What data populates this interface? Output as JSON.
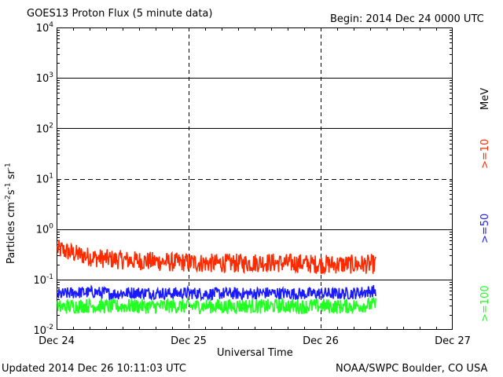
{
  "header": {
    "title": "GOES13 Proton Flux (5 minute data)",
    "begin": "Begin: 2014 Dec 24 0000 UTC"
  },
  "footer": {
    "updated": "Updated 2014 Dec 26 10:11:03 UTC",
    "credit": "NOAA/SWPC Boulder, CO USA"
  },
  "legend": {
    "unit": "MeV",
    "items": [
      {
        "label": ">=10",
        "color": "#ff2a00"
      },
      {
        "label": ">=50",
        "color": "#1a1aff"
      },
      {
        "label": ">=100",
        "color": "#22ff22"
      }
    ]
  },
  "chart_data": {
    "type": "line",
    "title": "GOES13 Proton Flux (5 minute data)",
    "xlabel": "Universal Time",
    "ylabel": "Particles cm^-2 s^-1 sr^-1",
    "y_scale": "log",
    "ylim": [
      0.01,
      10000
    ],
    "y_ticks": [
      {
        "base": "10",
        "exp": "4"
      },
      {
        "base": "10",
        "exp": "3"
      },
      {
        "base": "10",
        "exp": "2"
      },
      {
        "base": "10",
        "exp": "1"
      },
      {
        "base": "10",
        "exp": "0"
      },
      {
        "base": "10",
        "exp": "-1"
      },
      {
        "base": "10",
        "exp": "-2"
      }
    ],
    "x_ticks": [
      "Dec 24",
      "Dec 25",
      "Dec 26",
      "Dec 27"
    ],
    "xlim": [
      "2014-12-24 00:00",
      "2014-12-27 00:00"
    ],
    "grid": true,
    "series": [
      {
        "name": ">=10 MeV",
        "color": "#ff2a00",
        "data_end": "2014-12-26 10:05",
        "values_approx": [
          0.4,
          0.32,
          0.27,
          0.25,
          0.24,
          0.23,
          0.22,
          0.22,
          0.21,
          0.21,
          0.21,
          0.22,
          0.21,
          0.21,
          0.2,
          0.2,
          0.2,
          0.2
        ]
      },
      {
        "name": ">=50 MeV",
        "color": "#1a1aff",
        "data_end": "2014-12-26 10:05",
        "values_approx": [
          0.05,
          0.055,
          0.056,
          0.052,
          0.055,
          0.054,
          0.053,
          0.054,
          0.052,
          0.053,
          0.052,
          0.054,
          0.053,
          0.052,
          0.053,
          0.052,
          0.054,
          0.06
        ]
      },
      {
        "name": ">=100 MeV",
        "color": "#22ff22",
        "data_end": "2014-12-26 10:05",
        "values_approx": [
          0.028,
          0.03,
          0.03,
          0.029,
          0.03,
          0.029,
          0.03,
          0.029,
          0.03,
          0.029,
          0.03,
          0.029,
          0.03,
          0.029,
          0.03,
          0.029,
          0.03,
          0.032
        ]
      }
    ]
  }
}
